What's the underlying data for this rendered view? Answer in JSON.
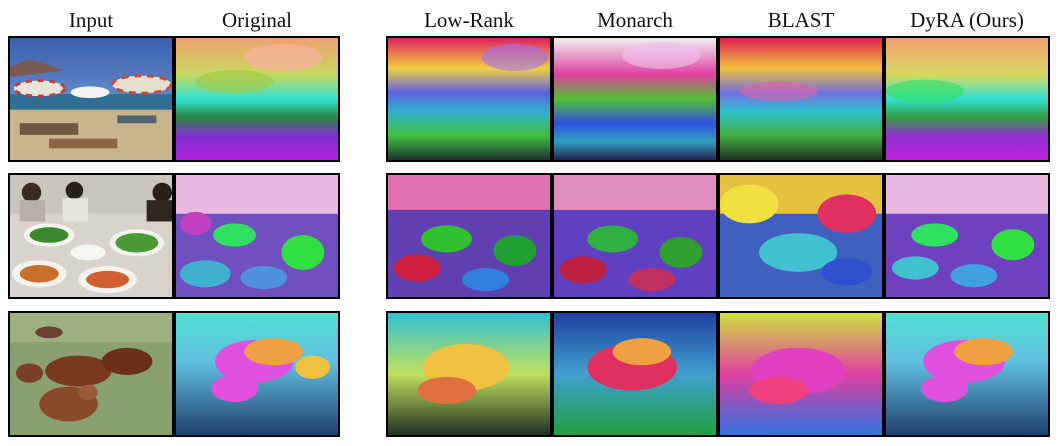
{
  "headers": {
    "input": "Input",
    "original": "Original",
    "low_rank": "Low-Rank",
    "monarch": "Monarch",
    "blast": "BLAST",
    "dyra": "DyRA (Ours)"
  },
  "rows": [
    {
      "scene": "beach-with-umbrellas"
    },
    {
      "scene": "people-eating-food-at-table"
    },
    {
      "scene": "cows-lying-on-grass"
    }
  ]
}
